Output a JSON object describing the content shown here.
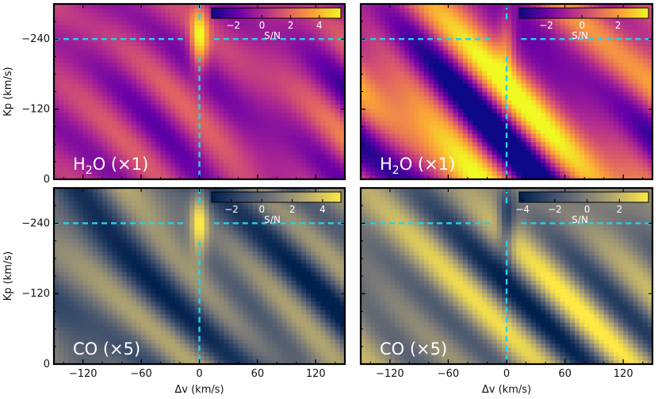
{
  "colors": {
    "guide_line": "#22d3ee",
    "frame": "#000000",
    "plasma": [
      "#0d0887",
      "#6a00a8",
      "#b12a90",
      "#e16462",
      "#fca636",
      "#f0f921"
    ],
    "cividis": [
      "#00204d",
      "#3b4d6b",
      "#7c7b78",
      "#bcae6e",
      "#ffe945"
    ]
  },
  "chart_data": [
    {
      "id": "h2o-a",
      "type": "heatmap",
      "label_parts": [
        "H",
        "2",
        "O (×1)"
      ],
      "colormap": "plasma",
      "xlabel": "",
      "ylabel": "Kp (km/s)",
      "xlim": [
        -150,
        150
      ],
      "ylim": [
        0,
        300
      ],
      "xticks": [
        -120,
        -60,
        0,
        60,
        120
      ],
      "yticks": [
        0,
        120,
        240
      ],
      "ytick_labels": [
        "0",
        "−120",
        "−240"
      ],
      "xtick_labels": [
        "",
        "",
        "",
        "",
        ""
      ],
      "guide_kp": 240,
      "guide_dv": 0,
      "colorbar": {
        "label": "S/N",
        "range": [
          -3.5,
          5.5
        ],
        "ticks": [
          -2,
          0,
          2,
          4
        ],
        "tick_labels": [
          "−2",
          "0",
          "2",
          "4"
        ]
      },
      "seed": 3,
      "peak_sn": 5.0
    },
    {
      "id": "h2o-b",
      "type": "heatmap",
      "label_parts": [
        "H",
        "2",
        "O (×1)"
      ],
      "colormap": "plasma",
      "xlabel": "",
      "ylabel": "",
      "xlim": [
        -150,
        150
      ],
      "ylim": [
        0,
        300
      ],
      "xticks": [
        -120,
        -60,
        0,
        60,
        120
      ],
      "yticks": [
        0,
        120,
        240
      ],
      "ytick_labels": [
        "",
        "",
        ""
      ],
      "xtick_labels": [
        "",
        "",
        "",
        "",
        ""
      ],
      "guide_kp": 240,
      "guide_dv": 0,
      "colorbar": {
        "label": "S/N",
        "range": [
          -3.5,
          3.7
        ],
        "ticks": [
          -2,
          0,
          2
        ],
        "tick_labels": [
          "−2",
          "0",
          "2"
        ]
      },
      "seed": 7,
      "peak_sn": 2.0
    },
    {
      "id": "co-a",
      "type": "heatmap",
      "label_parts": [
        "CO (×5)"
      ],
      "colormap": "cividis",
      "xlabel": "Δv (km/s)",
      "ylabel": "Kp (km/s)",
      "xlim": [
        -150,
        150
      ],
      "ylim": [
        0,
        300
      ],
      "xticks": [
        -120,
        -60,
        0,
        60,
        120
      ],
      "yticks": [
        0,
        120,
        240
      ],
      "ytick_labels": [
        "0",
        "−120",
        "−240"
      ],
      "xtick_labels": [
        "−120",
        "−60",
        "0",
        "60",
        "120"
      ],
      "guide_kp": 240,
      "guide_dv": 0,
      "colorbar": {
        "label": "S/N",
        "range": [
          -3.3,
          5.2
        ],
        "ticks": [
          -2,
          0,
          2,
          4
        ],
        "tick_labels": [
          "−2",
          "0",
          "2",
          "4"
        ]
      },
      "seed": 11,
      "peak_sn": 5.0
    },
    {
      "id": "co-b",
      "type": "heatmap",
      "label_parts": [
        "CO (×5)"
      ],
      "colormap": "cividis",
      "xlabel": "Δv (km/s)",
      "ylabel": "",
      "xlim": [
        -150,
        150
      ],
      "ylim": [
        0,
        300
      ],
      "xticks": [
        -120,
        -60,
        0,
        60,
        120
      ],
      "yticks": [
        0,
        120,
        240
      ],
      "ytick_labels": [
        "",
        "",
        ""
      ],
      "xtick_labels": [
        "−120",
        "−60",
        "0",
        "60",
        "120"
      ],
      "guide_kp": 240,
      "guide_dv": 0,
      "colorbar": {
        "label": "S/N",
        "range": [
          -4.2,
          3.8
        ],
        "ticks": [
          -4,
          -2,
          0,
          2
        ],
        "tick_labels": [
          "−4",
          "−2",
          "0",
          "2"
        ]
      },
      "seed": 19,
      "peak_sn": -4.0
    }
  ]
}
